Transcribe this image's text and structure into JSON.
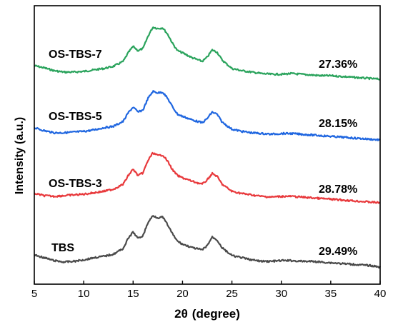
{
  "chart_data": {
    "type": "line",
    "xlabel_symbol": "2θ",
    "xlabel_unit": "(degree)",
    "ylabel": "Intensity (a.u.)",
    "xlim": [
      5,
      40
    ],
    "xticks": [
      5,
      10,
      15,
      20,
      25,
      30,
      35,
      40
    ],
    "y_ticks_shown": false,
    "grid": false,
    "legend": "none",
    "series": [
      {
        "name": "OS-TBS-7",
        "annotation": "27.36%",
        "color": "#2aa35c",
        "x": [
          5,
          6,
          7,
          8,
          9,
          10,
          11,
          12,
          13,
          14,
          14.5,
          15,
          15.5,
          16,
          16.5,
          17,
          17.5,
          18,
          18.5,
          19,
          19.5,
          20,
          21,
          22,
          22.5,
          23,
          23.5,
          24,
          25,
          26,
          27,
          28,
          29,
          30,
          31,
          32,
          33,
          34,
          35,
          36,
          37,
          38,
          39,
          40
        ],
        "y": [
          14,
          11,
          7,
          5,
          5,
          6,
          8,
          10,
          13,
          20,
          32,
          41,
          35,
          38,
          55,
          68,
          66,
          67,
          58,
          45,
          35,
          32,
          25,
          20,
          26,
          36,
          33,
          22,
          10,
          7,
          5,
          3,
          2,
          2,
          3,
          2,
          1,
          0,
          0,
          -1,
          -2,
          -3,
          -4,
          -5
        ]
      },
      {
        "name": "OS-TBS-5",
        "annotation": "28.15%",
        "color": "#1f66e0",
        "x": [
          5,
          6,
          7,
          8,
          9,
          10,
          11,
          12,
          13,
          14,
          14.5,
          15,
          15.5,
          16,
          16.5,
          17,
          17.5,
          18,
          18.5,
          19,
          19.5,
          20,
          21,
          22,
          22.5,
          23,
          23.5,
          24,
          25,
          26,
          27,
          28,
          29,
          30,
          31,
          32,
          33,
          34,
          35,
          36,
          37,
          38,
          39,
          40
        ],
        "y": [
          11,
          7,
          4,
          4,
          5,
          6,
          8,
          11,
          13,
          20,
          32,
          40,
          33,
          36,
          52,
          62,
          60,
          61,
          52,
          40,
          30,
          27,
          22,
          18,
          24,
          33,
          30,
          19,
          9,
          6,
          4,
          3,
          2,
          3,
          3,
          2,
          1,
          0,
          -1,
          -2,
          -3,
          -4,
          -5,
          -6
        ]
      },
      {
        "name": "OS-TBS-3",
        "annotation": "28.78%",
        "color": "#e8393c",
        "x": [
          5,
          6,
          7,
          8,
          9,
          10,
          11,
          12,
          13,
          14,
          14.5,
          15,
          15.5,
          16,
          16.5,
          17,
          17.5,
          18,
          18.5,
          19,
          19.5,
          20,
          21,
          22,
          22.5,
          23,
          23.5,
          24,
          25,
          26,
          27,
          28,
          29,
          30,
          31,
          32,
          33,
          34,
          35,
          36,
          37,
          38,
          39,
          40
        ],
        "y": [
          7,
          4,
          3,
          4,
          5,
          6,
          8,
          10,
          13,
          20,
          32,
          41,
          32,
          36,
          53,
          64,
          60,
          61,
          52,
          40,
          32,
          29,
          24,
          20,
          26,
          35,
          31,
          20,
          10,
          7,
          5,
          3,
          2,
          3,
          3,
          2,
          1,
          0,
          -1,
          -2,
          -3,
          -4,
          -5,
          -6
        ]
      },
      {
        "name": "TBS",
        "annotation": "29.49%",
        "color": "#4a4a4a",
        "x": [
          5,
          6,
          7,
          8,
          9,
          10,
          11,
          12,
          13,
          14,
          14.5,
          15,
          15.5,
          16,
          16.5,
          17,
          17.5,
          18,
          18.5,
          19,
          19.5,
          20,
          21,
          22,
          22.5,
          23,
          23.5,
          24,
          25,
          26,
          27,
          28,
          29,
          30,
          31,
          32,
          33,
          34,
          35,
          36,
          37,
          38,
          39,
          40
        ],
        "y": [
          11,
          7,
          3,
          1,
          2,
          4,
          7,
          9,
          12,
          20,
          34,
          43,
          34,
          38,
          56,
          66,
          63,
          64,
          53,
          40,
          30,
          26,
          21,
          18,
          24,
          36,
          32,
          21,
          10,
          7,
          4,
          2,
          2,
          3,
          3,
          2,
          2,
          1,
          0,
          -1,
          -2,
          -3,
          -4,
          -6
        ]
      }
    ]
  }
}
